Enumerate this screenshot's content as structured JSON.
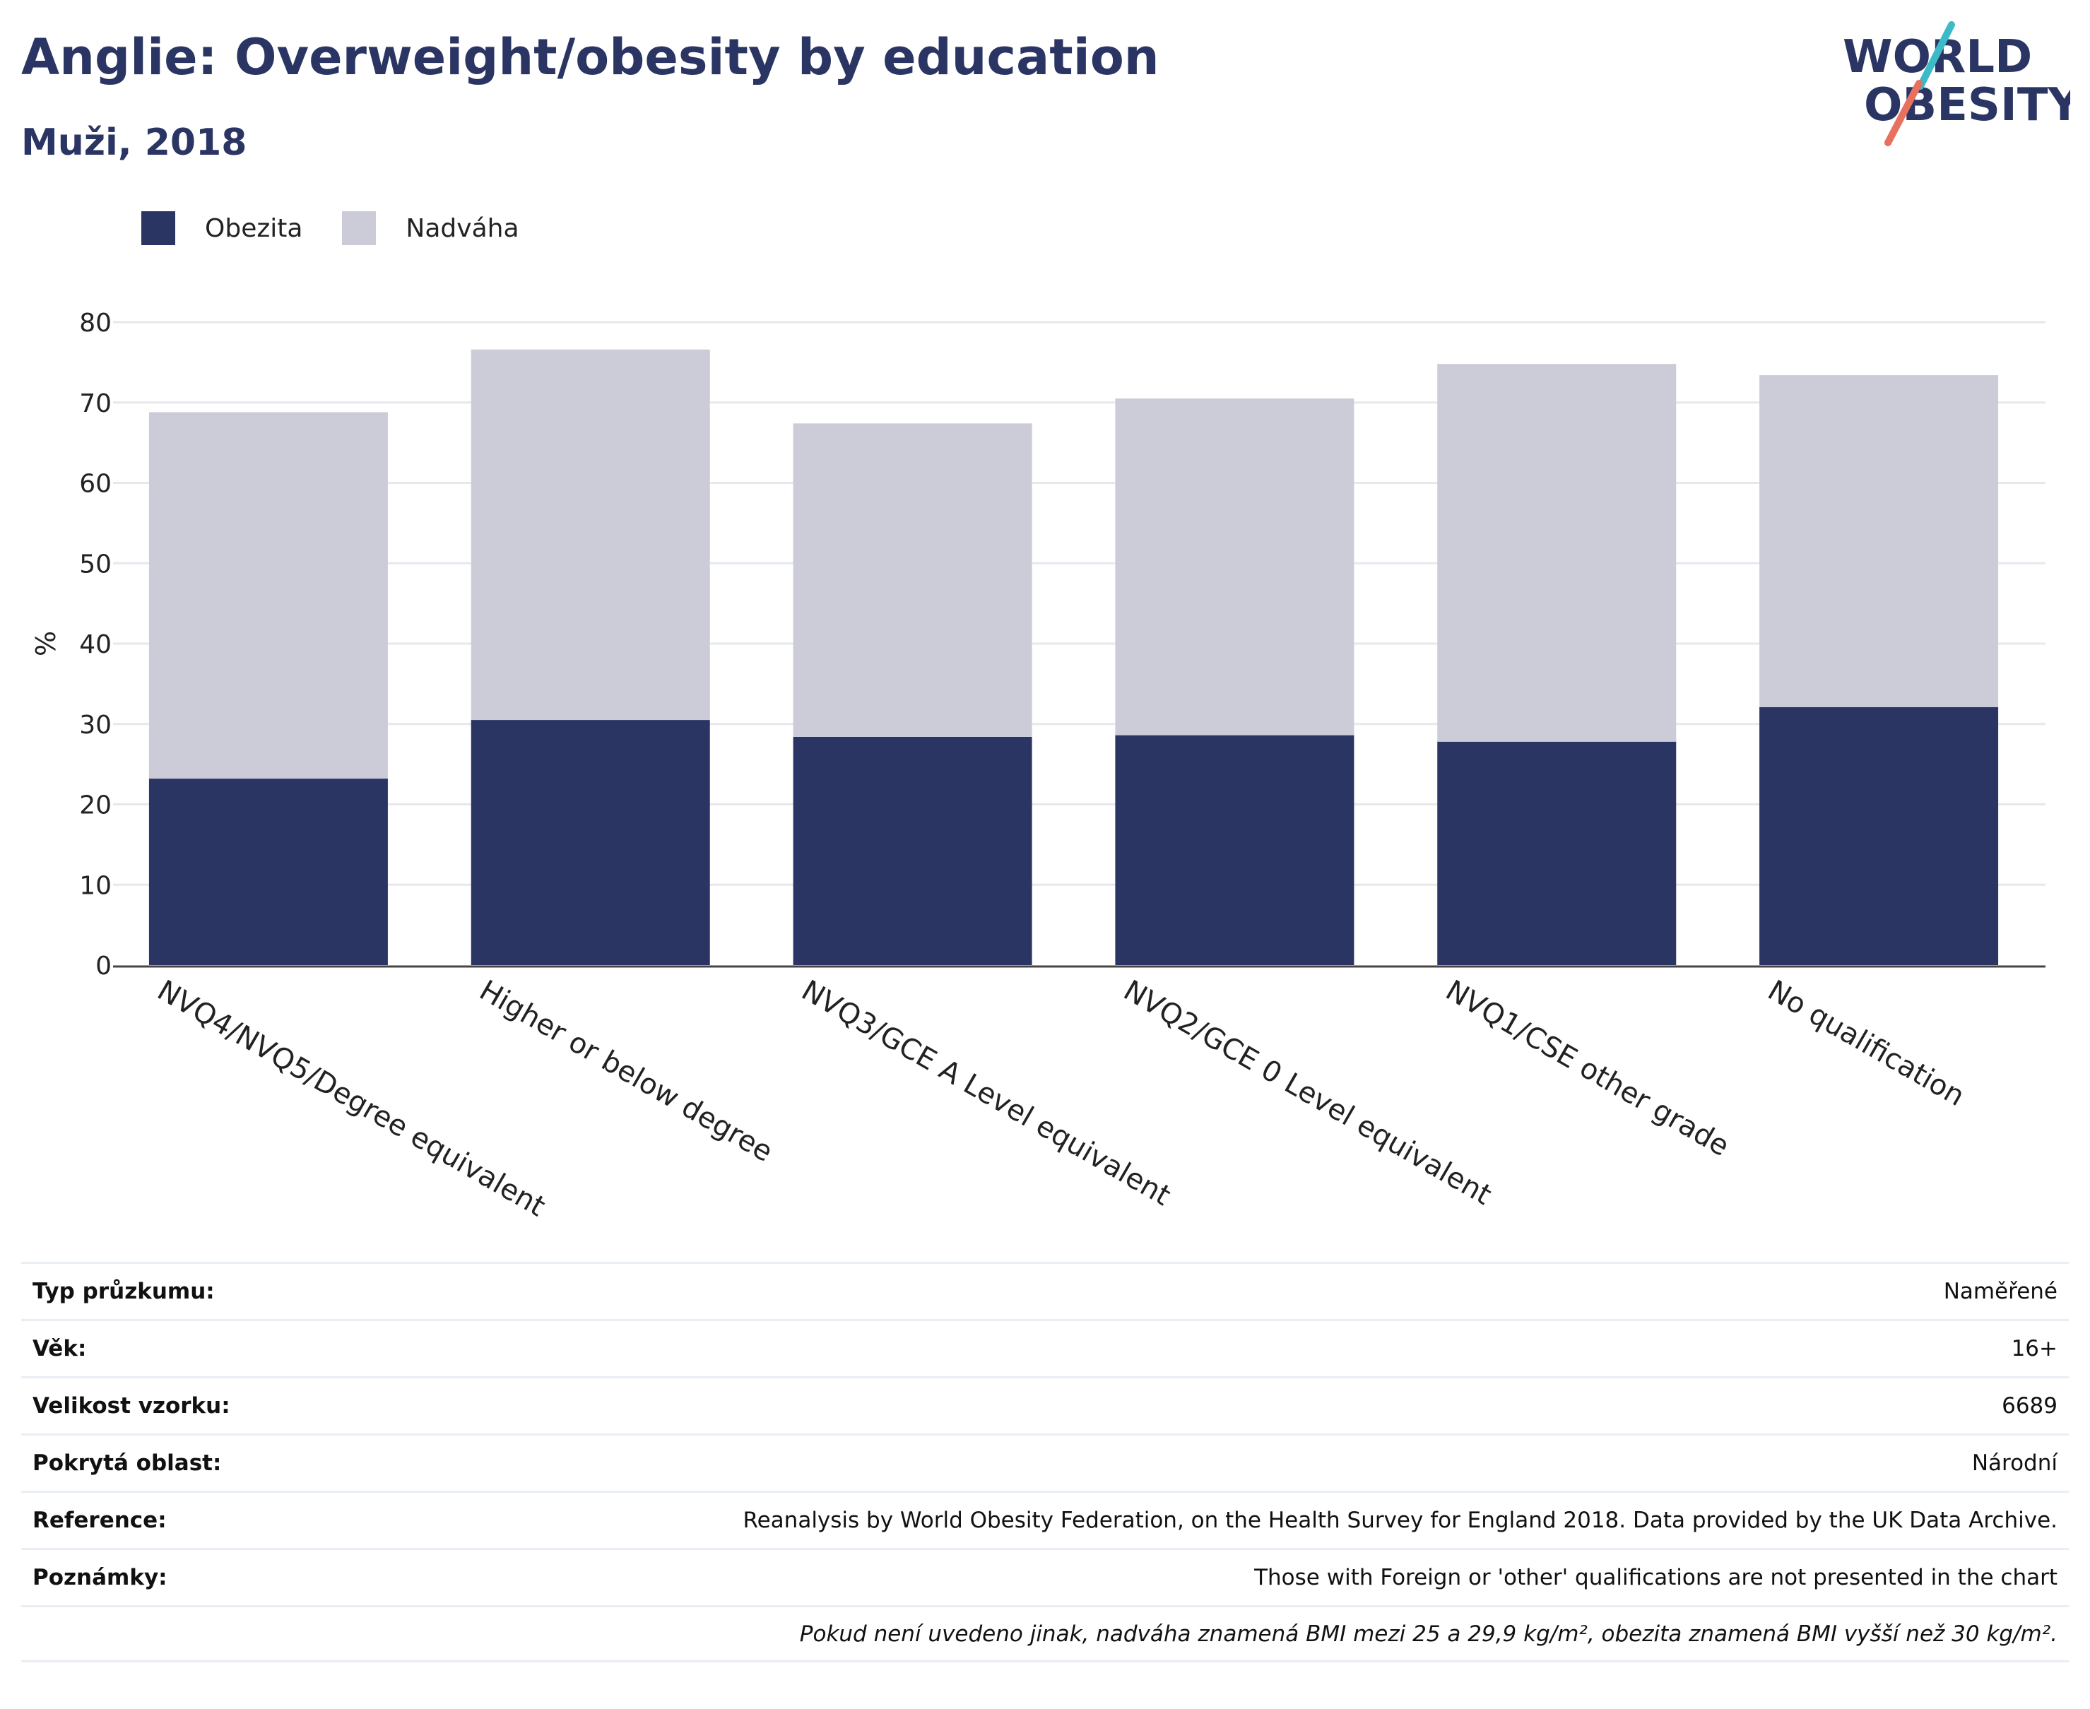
{
  "header": {
    "title": "Anglie: Overweight/obesity by education",
    "subtitle": "Muži, 2018",
    "logo_text": [
      "WORLD",
      "OBESITY"
    ]
  },
  "colors": {
    "obesity": "#2a3563",
    "overweight": "#cbccd8",
    "text_dark": "#2a3563",
    "logo_teal": "#3cbac8",
    "logo_coral": "#e8705f"
  },
  "chart_data": {
    "type": "bar",
    "stacked": true,
    "categories": [
      "NVQ4/NVQ5/Degree equivalent",
      "Higher or below degree",
      "NVQ3/GCE A Level equivalent",
      "NVQ2/GCE 0 Level equivalent",
      "NVQ1/CSE other grade",
      "No qualification"
    ],
    "series": [
      {
        "name": "Obezita",
        "values": [
          23.2,
          30.5,
          28.4,
          28.6,
          27.8,
          32.1
        ]
      },
      {
        "name": "Nadváha",
        "values": [
          45.6,
          46.1,
          39.0,
          41.9,
          47.0,
          41.3
        ]
      }
    ],
    "totals": [
      68.8,
      76.6,
      67.4,
      70.5,
      74.8,
      73.4
    ],
    "ylabel": "%",
    "xlabel": "",
    "ylim": [
      0,
      80
    ],
    "yticks": [
      0,
      10,
      20,
      30,
      40,
      50,
      60,
      70,
      80
    ],
    "grid": true,
    "legend_position": "top-left"
  },
  "info": [
    {
      "label": "Typ průzkumu:",
      "value": "Naměřené"
    },
    {
      "label": "Věk:",
      "value": "16+"
    },
    {
      "label": "Velikost vzorku:",
      "value": "6689"
    },
    {
      "label": "Pokrytá oblast:",
      "value": "Národní"
    },
    {
      "label": "Reference:",
      "value": "Reanalysis by World Obesity Federation, on the Health Survey for England 2018. Data provided by the UK Data Archive."
    },
    {
      "label": "Poznámky:",
      "value": "Those with Foreign or 'other' qualifications are not presented in the chart"
    }
  ],
  "footnote": "Pokud není uvedeno jinak, nadváha znamená BMI mezi 25 a 29,9 kg/m², obezita znamená BMI vyšší než 30 kg/m²."
}
